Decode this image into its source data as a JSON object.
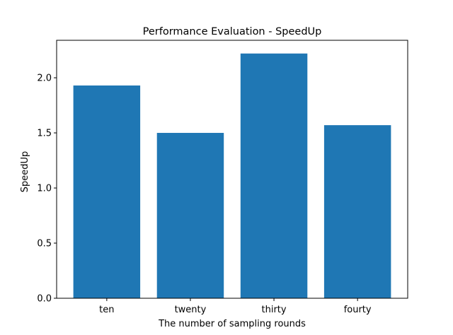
{
  "chart_data": {
    "type": "bar",
    "title": "Performance Evaluation - SpeedUp",
    "xlabel": "The number of sampling rounds",
    "ylabel": "SpeedUp",
    "categories": [
      "ten",
      "twenty",
      "thirty",
      "fourty"
    ],
    "values": [
      1.93,
      1.5,
      2.22,
      1.57
    ],
    "ylim": [
      0,
      2.34
    ],
    "yticks": [
      0.0,
      0.5,
      1.0,
      1.5,
      2.0
    ],
    "ytick_labels": [
      "0.0",
      "0.5",
      "1.0",
      "1.5",
      "2.0"
    ],
    "bar_color": "#1f77b4",
    "grid": false,
    "legend": "none"
  }
}
